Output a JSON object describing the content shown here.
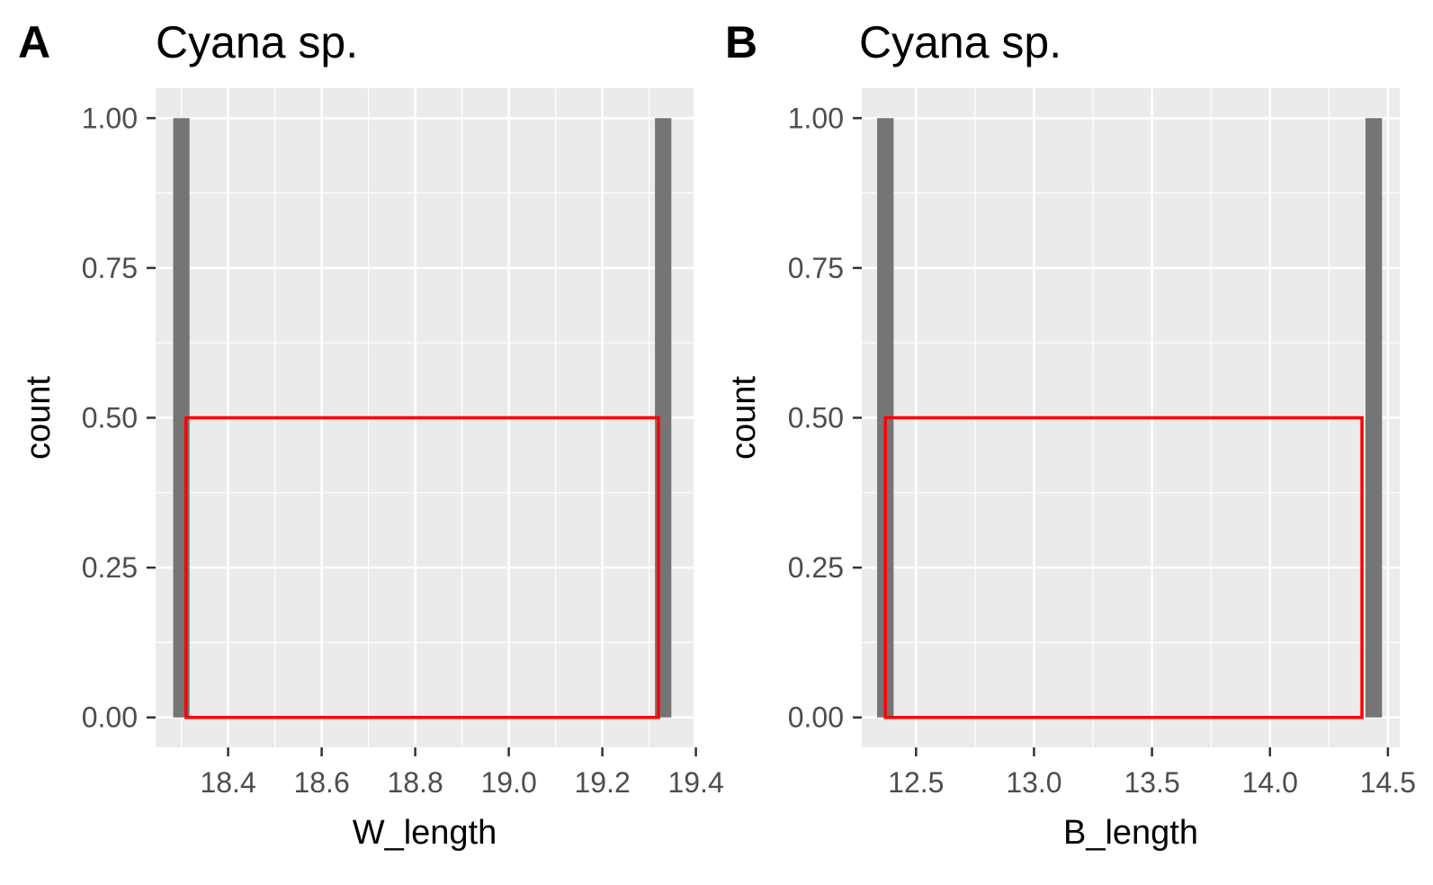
{
  "chart_data": [
    {
      "type": "bar",
      "tag": "A",
      "title": "Cyana sp.",
      "xlabel": "W_length",
      "ylabel": "count",
      "xlim": [
        18.245,
        19.395
      ],
      "ylim": [
        -0.05,
        1.05
      ],
      "xticks": [
        18.4,
        18.6,
        18.8,
        19.0,
        19.2,
        19.4
      ],
      "xtick_labels": [
        "18.4",
        "18.6",
        "18.8",
        "19.0",
        "19.2",
        "19.4"
      ],
      "yticks": [
        0,
        0.25,
        0.5,
        0.75,
        1
      ],
      "ytick_labels": [
        "0.00",
        "0.25",
        "0.50",
        "0.75",
        "1.00"
      ],
      "bars": [
        {
          "x": 18.3,
          "width": 0.035,
          "count": 1
        },
        {
          "x": 19.33,
          "width": 0.035,
          "count": 1
        }
      ],
      "overlay_rect": {
        "x_start": 18.31,
        "x_end": 19.32,
        "y_start": 0,
        "y_end": 0.5,
        "color": "#ff0000"
      },
      "bar_color": "#757575",
      "grid": true,
      "panel_background": "#ebebeb"
    },
    {
      "type": "bar",
      "tag": "B",
      "title": "Cyana sp.",
      "xlabel": "B_length",
      "ylabel": "count",
      "xlim": [
        12.27,
        14.55
      ],
      "ylim": [
        -0.05,
        1.05
      ],
      "xticks": [
        12.5,
        13.0,
        13.5,
        14.0,
        14.5
      ],
      "xtick_labels": [
        "12.5",
        "13.0",
        "13.5",
        "14.0",
        "14.5"
      ],
      "yticks": [
        0,
        0.25,
        0.5,
        0.75,
        1
      ],
      "ytick_labels": [
        "0.00",
        "0.25",
        "0.50",
        "0.75",
        "1.00"
      ],
      "bars": [
        {
          "x": 12.37,
          "width": 0.07,
          "count": 1
        },
        {
          "x": 14.44,
          "width": 0.07,
          "count": 1
        }
      ],
      "overlay_rect": {
        "x_start": 12.37,
        "x_end": 14.39,
        "y_start": 0,
        "y_end": 0.5,
        "color": "#ff0000"
      },
      "bar_color": "#757575",
      "grid": true,
      "panel_background": "#ebebeb"
    }
  ]
}
